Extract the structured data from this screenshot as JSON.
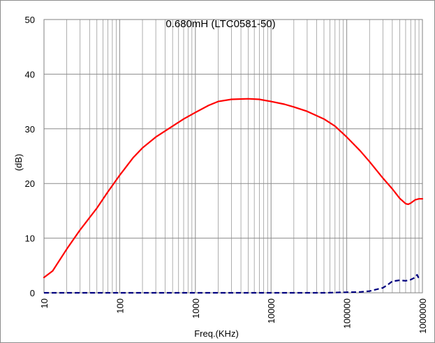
{
  "chart_data": {
    "type": "line",
    "title": "0.680mH (LTC0581-50)",
    "xlabel": "Freq.(KHz)",
    "ylabel": "(dB)",
    "x_scale": "log",
    "xlim": [
      10,
      1000000
    ],
    "ylim": [
      0,
      50
    ],
    "x_ticks": [
      10,
      100,
      1000,
      10000,
      100000,
      1000000
    ],
    "x_tick_labels": [
      "10",
      "100",
      "1000",
      "10000",
      "100000",
      "1000000"
    ],
    "y_ticks": [
      0,
      10,
      20,
      30,
      40,
      50
    ],
    "y_tick_labels": [
      "0",
      "10",
      "20",
      "30",
      "40",
      "50"
    ],
    "grid": true,
    "legend": "none",
    "series": [
      {
        "color": "#ff0000",
        "style": "solid",
        "x": [
          10,
          13,
          20,
          30,
          50,
          70,
          100,
          150,
          200,
          300,
          500,
          700,
          1000,
          1500,
          2000,
          3000,
          5000,
          7000,
          10000,
          15000,
          20000,
          30000,
          50000,
          70000,
          100000,
          150000,
          200000,
          300000,
          400000,
          500000,
          600000,
          650000,
          700000,
          800000,
          900000,
          1000000
        ],
        "y": [
          2.8,
          4,
          8,
          11.5,
          15.5,
          18.5,
          21.5,
          24.7,
          26.5,
          28.5,
          30.5,
          31.8,
          33,
          34.3,
          35,
          35.4,
          35.5,
          35.4,
          35,
          34.5,
          34,
          33.2,
          31.8,
          30.5,
          28.5,
          26,
          24,
          21,
          19,
          17.3,
          16.3,
          16.2,
          16.4,
          17,
          17.2,
          17.2
        ]
      },
      {
        "color": "#00007f",
        "style": "dashed",
        "x": [
          10,
          100,
          1000,
          10000,
          50000,
          100000,
          150000,
          200000,
          300000,
          350000,
          400000,
          500000,
          600000,
          700000,
          800000,
          850000,
          900000,
          950000
        ],
        "y": [
          0,
          0,
          0,
          0,
          0,
          0.1,
          0.15,
          0.3,
          0.9,
          1.5,
          2.1,
          2.3,
          2.2,
          2.4,
          2.8,
          3.3,
          2.6,
          2.5
        ]
      }
    ]
  }
}
